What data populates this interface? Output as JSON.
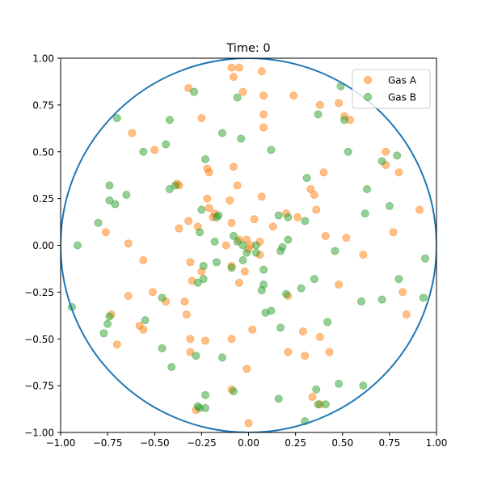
{
  "chart_data": {
    "type": "scatter",
    "title": "Time: 0",
    "xlabel": "",
    "ylabel": "",
    "xlim": [
      -1.0,
      1.0
    ],
    "ylim": [
      -1.0,
      1.0
    ],
    "xticks": [
      "−1.00",
      "−0.75",
      "−0.50",
      "−0.25",
      "0.00",
      "0.25",
      "0.50",
      "0.75",
      "1.00"
    ],
    "yticks": [
      "−1.00",
      "−0.75",
      "−0.50",
      "−0.25",
      "0.00",
      "0.25",
      "0.50",
      "0.75",
      "1.00"
    ],
    "grid": false,
    "legend_position": "top-right",
    "boundary": {
      "shape": "circle",
      "center": [
        0,
        0
      ],
      "radius": 1.0,
      "color": "#1f77b4"
    },
    "series": [
      {
        "name": "Gas A",
        "color": "#ff7f0e",
        "points": [
          [
            -0.09,
            0.95
          ],
          [
            -0.05,
            0.95
          ],
          [
            0.07,
            0.93
          ],
          [
            -0.08,
            0.9
          ],
          [
            -0.32,
            0.84
          ],
          [
            -0.03,
            0.82
          ],
          [
            0.08,
            0.8
          ],
          [
            0.24,
            0.8
          ],
          [
            0.38,
            0.75
          ],
          [
            0.48,
            0.76
          ],
          [
            0.51,
            0.69
          ],
          [
            0.54,
            0.67
          ],
          [
            -0.25,
            0.68
          ],
          [
            0.08,
            0.7
          ],
          [
            0.08,
            0.63
          ],
          [
            -0.62,
            0.6
          ],
          [
            -0.5,
            0.51
          ],
          [
            0.73,
            0.5
          ],
          [
            0.73,
            0.43
          ],
          [
            0.8,
            0.39
          ],
          [
            0.4,
            0.39
          ],
          [
            -0.22,
            0.41
          ],
          [
            -0.21,
            0.39
          ],
          [
            -0.08,
            0.42
          ],
          [
            -0.38,
            0.33
          ],
          [
            -0.37,
            0.32
          ],
          [
            -0.06,
            0.32
          ],
          [
            0.33,
            0.3
          ],
          [
            0.35,
            0.27
          ],
          [
            -0.22,
            0.25
          ],
          [
            -0.1,
            0.24
          ],
          [
            0.07,
            0.26
          ],
          [
            -0.21,
            0.2
          ],
          [
            -0.18,
            0.17
          ],
          [
            -0.19,
            0.15
          ],
          [
            0.2,
            0.17
          ],
          [
            0.26,
            0.15
          ],
          [
            0.36,
            0.19
          ],
          [
            0.91,
            0.19
          ],
          [
            -0.32,
            0.13
          ],
          [
            -0.27,
            0.1
          ],
          [
            -0.37,
            0.09
          ],
          [
            -0.09,
            0.12
          ],
          [
            0.03,
            0.14
          ],
          [
            0.06,
            0.02
          ],
          [
            0.13,
            0.1
          ],
          [
            0.77,
            0.07
          ],
          [
            -0.76,
            0.07
          ],
          [
            0.41,
            0.05
          ],
          [
            0.52,
            0.04
          ],
          [
            -0.64,
            0.01
          ],
          [
            -0.05,
            0.03
          ],
          [
            -0.01,
            0.03
          ],
          [
            0.01,
            0.0
          ],
          [
            0.0,
            -0.02
          ],
          [
            -0.12,
            0.0
          ],
          [
            -0.56,
            -0.08
          ],
          [
            -0.31,
            -0.09
          ],
          [
            0.06,
            -0.05
          ],
          [
            0.61,
            -0.05
          ],
          [
            -0.09,
            -0.11
          ],
          [
            -0.02,
            -0.14
          ],
          [
            -0.25,
            -0.14
          ],
          [
            -0.3,
            -0.19
          ],
          [
            -0.05,
            -0.2
          ],
          [
            0.48,
            -0.21
          ],
          [
            -0.51,
            -0.25
          ],
          [
            -0.64,
            -0.27
          ],
          [
            0.21,
            -0.27
          ],
          [
            0.82,
            -0.25
          ],
          [
            -0.44,
            -0.3
          ],
          [
            -0.34,
            -0.3
          ],
          [
            -0.73,
            -0.37
          ],
          [
            -0.33,
            -0.37
          ],
          [
            0.84,
            -0.37
          ],
          [
            -0.58,
            -0.43
          ],
          [
            -0.56,
            -0.45
          ],
          [
            -0.09,
            -0.5
          ],
          [
            0.02,
            -0.45
          ],
          [
            0.29,
            -0.46
          ],
          [
            0.38,
            -0.49
          ],
          [
            -0.31,
            -0.5
          ],
          [
            -0.23,
            -0.51
          ],
          [
            -0.7,
            -0.53
          ],
          [
            0.21,
            -0.57
          ],
          [
            0.3,
            -0.59
          ],
          [
            0.43,
            -0.57
          ],
          [
            -0.31,
            -0.57
          ],
          [
            -0.01,
            -0.66
          ],
          [
            -0.09,
            -0.77
          ],
          [
            0.34,
            -0.81
          ],
          [
            -0.28,
            -0.88
          ],
          [
            0.38,
            -0.85
          ],
          [
            0.0,
            -0.95
          ]
        ]
      },
      {
        "name": "Gas B",
        "color": "#2ca02c",
        "points": [
          [
            0.49,
            0.85
          ],
          [
            -0.29,
            0.82
          ],
          [
            -0.06,
            0.79
          ],
          [
            0.37,
            0.7
          ],
          [
            -0.7,
            0.68
          ],
          [
            0.51,
            0.67
          ],
          [
            -0.42,
            0.67
          ],
          [
            -0.14,
            0.6
          ],
          [
            -0.04,
            0.57
          ],
          [
            -0.44,
            0.54
          ],
          [
            -0.56,
            0.5
          ],
          [
            0.12,
            0.51
          ],
          [
            0.53,
            0.5
          ],
          [
            0.71,
            0.45
          ],
          [
            0.79,
            0.48
          ],
          [
            -0.23,
            0.46
          ],
          [
            -0.39,
            0.32
          ],
          [
            -0.42,
            0.3
          ],
          [
            0.31,
            0.36
          ],
          [
            0.63,
            0.3
          ],
          [
            -0.74,
            0.32
          ],
          [
            -0.65,
            0.27
          ],
          [
            -0.74,
            0.24
          ],
          [
            -0.71,
            0.22
          ],
          [
            -0.25,
            0.19
          ],
          [
            0.75,
            0.21
          ],
          [
            0.62,
            0.17
          ],
          [
            0.16,
            0.16
          ],
          [
            0.21,
            0.15
          ],
          [
            0.3,
            0.13
          ],
          [
            -0.16,
            0.16
          ],
          [
            -0.17,
            0.15
          ],
          [
            -0.8,
            0.12
          ],
          [
            -0.26,
            0.07
          ],
          [
            -0.08,
            0.05
          ],
          [
            -0.18,
            0.02
          ],
          [
            -0.06,
            0.02
          ],
          [
            -0.03,
            0.0
          ],
          [
            -0.91,
            0.0
          ],
          [
            0.04,
            0.0
          ],
          [
            0.21,
            0.03
          ],
          [
            0.18,
            -0.01
          ],
          [
            0.17,
            -0.03
          ],
          [
            0.46,
            -0.03
          ],
          [
            -0.01,
            -0.04
          ],
          [
            0.04,
            -0.04
          ],
          [
            -0.24,
            -0.11
          ],
          [
            -0.17,
            -0.09
          ],
          [
            0.08,
            -0.13
          ],
          [
            -0.09,
            -0.12
          ],
          [
            0.94,
            -0.07
          ],
          [
            -0.03,
            -0.08
          ],
          [
            -0.24,
            -0.18
          ],
          [
            -0.27,
            -0.2
          ],
          [
            0.35,
            -0.18
          ],
          [
            0.8,
            -0.18
          ],
          [
            0.08,
            -0.21
          ],
          [
            0.07,
            -0.24
          ],
          [
            0.28,
            -0.23
          ],
          [
            -0.46,
            -0.28
          ],
          [
            0.2,
            -0.26
          ],
          [
            0.71,
            -0.29
          ],
          [
            0.6,
            -0.3
          ],
          [
            0.93,
            -0.28
          ],
          [
            -0.94,
            -0.33
          ],
          [
            0.12,
            -0.35
          ],
          [
            0.09,
            -0.36
          ],
          [
            -0.74,
            -0.38
          ],
          [
            -0.55,
            -0.4
          ],
          [
            -0.75,
            -0.42
          ],
          [
            0.42,
            -0.41
          ],
          [
            0.17,
            -0.44
          ],
          [
            -0.77,
            -0.47
          ],
          [
            -0.46,
            -0.55
          ],
          [
            -0.28,
            -0.59
          ],
          [
            -0.14,
            -0.6
          ],
          [
            -0.41,
            -0.65
          ],
          [
            0.48,
            -0.74
          ],
          [
            0.61,
            -0.75
          ],
          [
            0.36,
            -0.77
          ],
          [
            -0.23,
            -0.8
          ],
          [
            -0.08,
            -0.78
          ],
          [
            0.16,
            -0.82
          ],
          [
            0.37,
            -0.85
          ],
          [
            0.41,
            -0.85
          ],
          [
            -0.27,
            -0.86
          ],
          [
            -0.26,
            -0.87
          ],
          [
            -0.23,
            -0.87
          ],
          [
            0.3,
            -0.94
          ]
        ]
      }
    ]
  }
}
